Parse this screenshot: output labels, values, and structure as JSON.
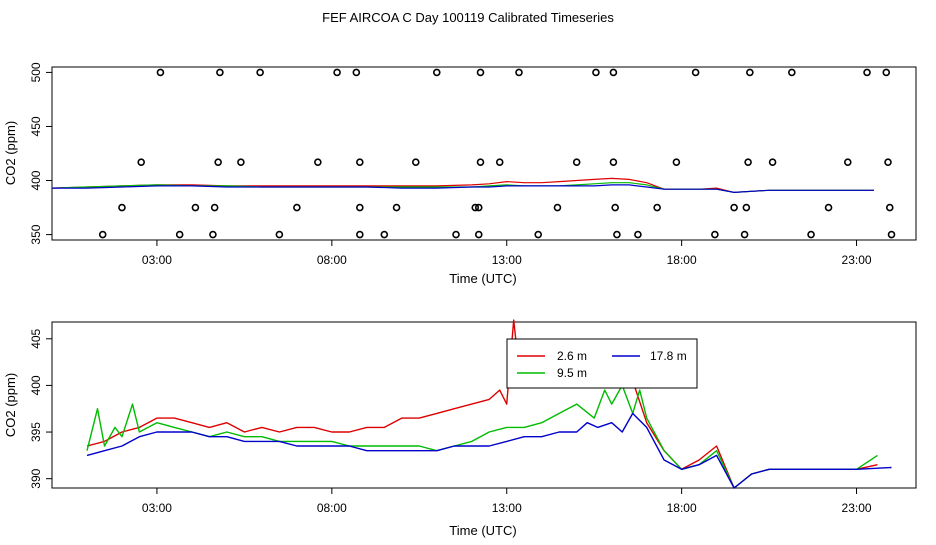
{
  "figure": {
    "title": "FEF AIRCOA C  Day 100119  Calibrated Timeseries"
  },
  "chart_data": [
    {
      "type": "scatter",
      "xlabel": "Time (UTC)",
      "ylabel": "CO2 (ppm)",
      "x_unit": "hours UTC",
      "xlim": [
        0,
        24.7
      ],
      "ylim": [
        345,
        505
      ],
      "x_ticks": [
        3,
        8,
        13,
        18,
        23
      ],
      "x_tick_labels": [
        "03:00",
        "08:00",
        "13:00",
        "18:00",
        "23:00"
      ],
      "y_ticks": [
        350,
        400,
        450,
        500
      ],
      "y_tick_labels": [
        "350",
        "400",
        "450",
        "500"
      ],
      "grid": false,
      "colors": {
        "red": "#dd0000",
        "green": "#00bb00",
        "blue": "#0000cc"
      },
      "points": [
        [
          1.45,
          350
        ],
        [
          2.0,
          375
        ],
        [
          2.55,
          417
        ],
        [
          3.1,
          500
        ],
        [
          3.65,
          350
        ],
        [
          4.1,
          375
        ],
        [
          4.6,
          350
        ],
        [
          4.65,
          375
        ],
        [
          4.75,
          417
        ],
        [
          4.8,
          500
        ],
        [
          5.4,
          417
        ],
        [
          5.95,
          500
        ],
        [
          6.5,
          350
        ],
        [
          7.0,
          375
        ],
        [
          7.6,
          417
        ],
        [
          8.15,
          500
        ],
        [
          8.7,
          500
        ],
        [
          8.8,
          417
        ],
        [
          8.8,
          375
        ],
        [
          8.8,
          350
        ],
        [
          9.5,
          350
        ],
        [
          9.85,
          375
        ],
        [
          10.4,
          417
        ],
        [
          11.0,
          500
        ],
        [
          11.55,
          350
        ],
        [
          12.1,
          375
        ],
        [
          12.2,
          350
        ],
        [
          12.2,
          375
        ],
        [
          12.25,
          417
        ],
        [
          12.25,
          500
        ],
        [
          12.8,
          417
        ],
        [
          13.35,
          500
        ],
        [
          13.9,
          350
        ],
        [
          14.45,
          375
        ],
        [
          15.0,
          417
        ],
        [
          15.55,
          500
        ],
        [
          16.05,
          500
        ],
        [
          16.05,
          417
        ],
        [
          16.1,
          375
        ],
        [
          16.15,
          350
        ],
        [
          16.75,
          350
        ],
        [
          17.3,
          375
        ],
        [
          17.85,
          417
        ],
        [
          18.4,
          500
        ],
        [
          18.95,
          350
        ],
        [
          19.5,
          375
        ],
        [
          19.8,
          350
        ],
        [
          19.85,
          375
        ],
        [
          19.9,
          417
        ],
        [
          19.95,
          500
        ],
        [
          20.6,
          417
        ],
        [
          21.15,
          500
        ],
        [
          21.7,
          350
        ],
        [
          22.2,
          375
        ],
        [
          22.75,
          417
        ],
        [
          23.3,
          500
        ],
        [
          23.85,
          500
        ],
        [
          23.9,
          417
        ],
        [
          23.95,
          375
        ],
        [
          24.0,
          350
        ]
      ],
      "series": [
        {
          "color": "red",
          "x": [
            0,
            1,
            2,
            3,
            4,
            5,
            6,
            7,
            8,
            9,
            10,
            11,
            12,
            12.5,
            13,
            13.5,
            14,
            14.5,
            15,
            15.5,
            16,
            16.5,
            17,
            17.5,
            18,
            18.5,
            19,
            19.5,
            20,
            20.5,
            21,
            21.5,
            22,
            22.5,
            23,
            23.5
          ],
          "values": [
            393,
            394,
            395,
            396,
            396,
            395,
            395,
            395,
            395,
            395,
            395,
            395,
            396,
            397,
            399,
            398,
            398,
            399,
            400,
            401,
            402,
            401,
            398,
            392,
            392,
            392,
            393,
            389,
            390,
            391,
            391,
            391,
            391,
            391,
            391,
            391
          ]
        },
        {
          "color": "green",
          "x": [
            0,
            1,
            2,
            3,
            4,
            5,
            6,
            7,
            8,
            9,
            10,
            11,
            12,
            12.5,
            13,
            13.5,
            14,
            14.5,
            15,
            15.5,
            16,
            16.5,
            17,
            17.5,
            18,
            18.5,
            19,
            19.5,
            20,
            20.5,
            21,
            21.5,
            22,
            22.5,
            23,
            23.5
          ],
          "values": [
            393,
            394,
            395,
            396,
            395,
            395,
            394,
            394,
            394,
            394,
            394,
            394,
            394,
            395,
            396,
            395,
            395,
            395,
            396,
            397,
            398,
            398,
            396,
            392,
            392,
            392,
            392,
            389,
            390,
            391,
            391,
            391,
            391,
            391,
            391,
            391
          ]
        },
        {
          "color": "blue",
          "x": [
            0,
            1,
            2,
            3,
            4,
            5,
            6,
            7,
            8,
            9,
            10,
            11,
            12,
            12.5,
            13,
            13.5,
            14,
            14.5,
            15,
            15.5,
            16,
            16.5,
            17,
            17.5,
            18,
            18.5,
            19,
            19.5,
            20,
            20.5,
            21,
            21.5,
            22,
            22.5,
            23,
            23.5
          ],
          "values": [
            393,
            393,
            394,
            395,
            395,
            394,
            394,
            394,
            394,
            394,
            393,
            393,
            394,
            394,
            395,
            395,
            395,
            395,
            395,
            395,
            396,
            396,
            394,
            392,
            392,
            392,
            392,
            389,
            390,
            391,
            391,
            391,
            391,
            391,
            391,
            391
          ]
        }
      ]
    },
    {
      "type": "line",
      "xlabel": "Time (UTC)",
      "ylabel": "CO2 (ppm)",
      "x_unit": "hours UTC",
      "xlim": [
        0,
        24.7
      ],
      "ylim": [
        389,
        406.8
      ],
      "x_ticks": [
        3,
        8,
        13,
        18,
        23
      ],
      "x_tick_labels": [
        "03:00",
        "08:00",
        "13:00",
        "18:00",
        "23:00"
      ],
      "y_ticks": [
        390,
        395,
        400,
        405
      ],
      "y_tick_labels": [
        "390",
        "395",
        "400",
        "405"
      ],
      "grid": false,
      "legend": {
        "placement": "top-center"
      },
      "series": [
        {
          "name": "2.6 m",
          "color": "#dd0000",
          "x": [
            1.0,
            1.5,
            2.0,
            2.5,
            3.0,
            3.5,
            4.0,
            4.5,
            5.0,
            5.5,
            6.0,
            6.5,
            7.0,
            7.5,
            8.0,
            8.5,
            9.0,
            9.5,
            10.0,
            10.5,
            11.0,
            11.5,
            12.0,
            12.5,
            12.8,
            13.0,
            13.2,
            13.4,
            13.7,
            14.0,
            14.3,
            14.6,
            15.0,
            15.3,
            15.6,
            16.0,
            16.3,
            16.6,
            17.0,
            17.5,
            18.0,
            18.5,
            19.0,
            19.5,
            20.0,
            20.5,
            21.0,
            22.0,
            23.0,
            23.6
          ],
          "values": [
            393.5,
            394.0,
            395.0,
            395.5,
            396.5,
            396.5,
            396.0,
            395.5,
            396.0,
            395.0,
            395.5,
            395.0,
            395.5,
            395.5,
            395.0,
            395.0,
            395.5,
            395.5,
            396.5,
            396.5,
            397.0,
            397.5,
            398.0,
            398.5,
            399.5,
            398.0,
            407.0,
            400.0,
            401.0,
            402.0,
            400.5,
            402.0,
            401.0,
            403.0,
            401.5,
            402.5,
            401.5,
            400.5,
            396.0,
            393.0,
            391.0,
            392.0,
            393.5,
            389.0,
            390.5,
            391.0,
            391.0,
            391.0,
            391.0,
            391.5
          ]
        },
        {
          "name": "9.5 m",
          "color": "#00bb00",
          "x": [
            1.0,
            1.3,
            1.5,
            1.8,
            2.0,
            2.3,
            2.5,
            3.0,
            3.5,
            4.0,
            4.5,
            5.0,
            5.5,
            6.0,
            6.5,
            7.0,
            7.5,
            8.0,
            8.5,
            9.0,
            9.5,
            10.0,
            10.5,
            11.0,
            11.5,
            12.0,
            12.5,
            13.0,
            13.5,
            14.0,
            14.5,
            15.0,
            15.5,
            15.8,
            16.0,
            16.3,
            16.6,
            16.8,
            17.0,
            17.5,
            18.0,
            18.5,
            19.0,
            19.5,
            20.0,
            20.5,
            21.0,
            22.0,
            23.0,
            23.6
          ],
          "values": [
            393.0,
            397.5,
            393.5,
            395.5,
            394.5,
            398.0,
            395.0,
            396.0,
            395.5,
            395.0,
            394.5,
            395.0,
            394.5,
            394.5,
            394.0,
            394.0,
            394.0,
            394.0,
            393.5,
            393.5,
            393.5,
            393.5,
            393.5,
            393.0,
            393.5,
            394.0,
            395.0,
            395.5,
            395.5,
            396.0,
            397.0,
            398.0,
            396.5,
            399.5,
            398.0,
            400.0,
            397.0,
            399.5,
            396.5,
            393.0,
            391.0,
            391.5,
            393.0,
            389.0,
            390.5,
            391.0,
            391.0,
            391.0,
            391.0,
            392.5
          ]
        },
        {
          "name": "17.8 m",
          "color": "#0000cc",
          "x": [
            1.0,
            1.5,
            2.0,
            2.5,
            3.0,
            3.5,
            4.0,
            4.5,
            5.0,
            5.5,
            6.0,
            6.5,
            7.0,
            7.5,
            8.0,
            8.5,
            9.0,
            9.5,
            10.0,
            10.5,
            11.0,
            11.5,
            12.0,
            12.5,
            13.0,
            13.5,
            14.0,
            14.5,
            15.0,
            15.3,
            15.6,
            16.0,
            16.3,
            16.6,
            17.0,
            17.5,
            18.0,
            18.5,
            19.0,
            19.5,
            20.0,
            20.5,
            21.0,
            22.0,
            23.0,
            24.0
          ],
          "values": [
            392.5,
            393.0,
            393.5,
            394.5,
            395.0,
            395.0,
            395.0,
            394.5,
            394.5,
            394.0,
            394.0,
            394.0,
            393.5,
            393.5,
            393.5,
            393.5,
            393.0,
            393.0,
            393.0,
            393.0,
            393.0,
            393.5,
            393.5,
            393.5,
            394.0,
            394.5,
            394.5,
            395.0,
            395.0,
            396.0,
            395.5,
            396.0,
            395.0,
            397.0,
            395.5,
            392.0,
            391.0,
            391.5,
            392.5,
            389.0,
            390.5,
            391.0,
            391.0,
            391.0,
            391.0,
            391.2
          ]
        }
      ]
    }
  ]
}
